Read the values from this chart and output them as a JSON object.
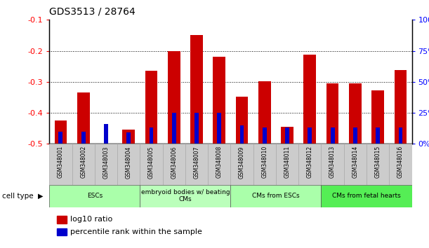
{
  "title": "GDS3513 / 28764",
  "samples": [
    "GSM348001",
    "GSM348002",
    "GSM348003",
    "GSM348004",
    "GSM348005",
    "GSM348006",
    "GSM348007",
    "GSM348008",
    "GSM348009",
    "GSM348010",
    "GSM348011",
    "GSM348012",
    "GSM348013",
    "GSM348014",
    "GSM348015",
    "GSM348016"
  ],
  "log10_ratio": [
    -0.425,
    -0.335,
    -0.499,
    -0.455,
    -0.265,
    -0.2,
    -0.148,
    -0.218,
    -0.348,
    -0.298,
    -0.445,
    -0.213,
    -0.305,
    -0.305,
    -0.328,
    -0.262
  ],
  "percentile_rank_pct": [
    10,
    10,
    16,
    9,
    13,
    25,
    25,
    25,
    15,
    13,
    13,
    13,
    13,
    13,
    13,
    13
  ],
  "cell_groups": [
    {
      "label": "ESCs",
      "start": 0,
      "end": 3,
      "color": "#aaffaa"
    },
    {
      "label": "embryoid bodies w/ beating\nCMs",
      "start": 4,
      "end": 7,
      "color": "#bbffbb"
    },
    {
      "label": "CMs from ESCs",
      "start": 8,
      "end": 11,
      "color": "#aaffaa"
    },
    {
      "label": "CMs from fetal hearts",
      "start": 12,
      "end": 15,
      "color": "#55ee55"
    }
  ],
  "ymin": -0.5,
  "ymax": -0.1,
  "yticks": [
    -0.5,
    -0.4,
    -0.3,
    -0.2,
    -0.1
  ],
  "right_ticks": [
    0,
    25,
    50,
    75,
    100
  ],
  "bar_color_red": "#cc0000",
  "bar_color_blue": "#0000cc",
  "cell_type_label": "cell type",
  "legend_items": [
    {
      "color": "#cc0000",
      "label": "log10 ratio"
    },
    {
      "color": "#0000cc",
      "label": "percentile rank within the sample"
    }
  ]
}
